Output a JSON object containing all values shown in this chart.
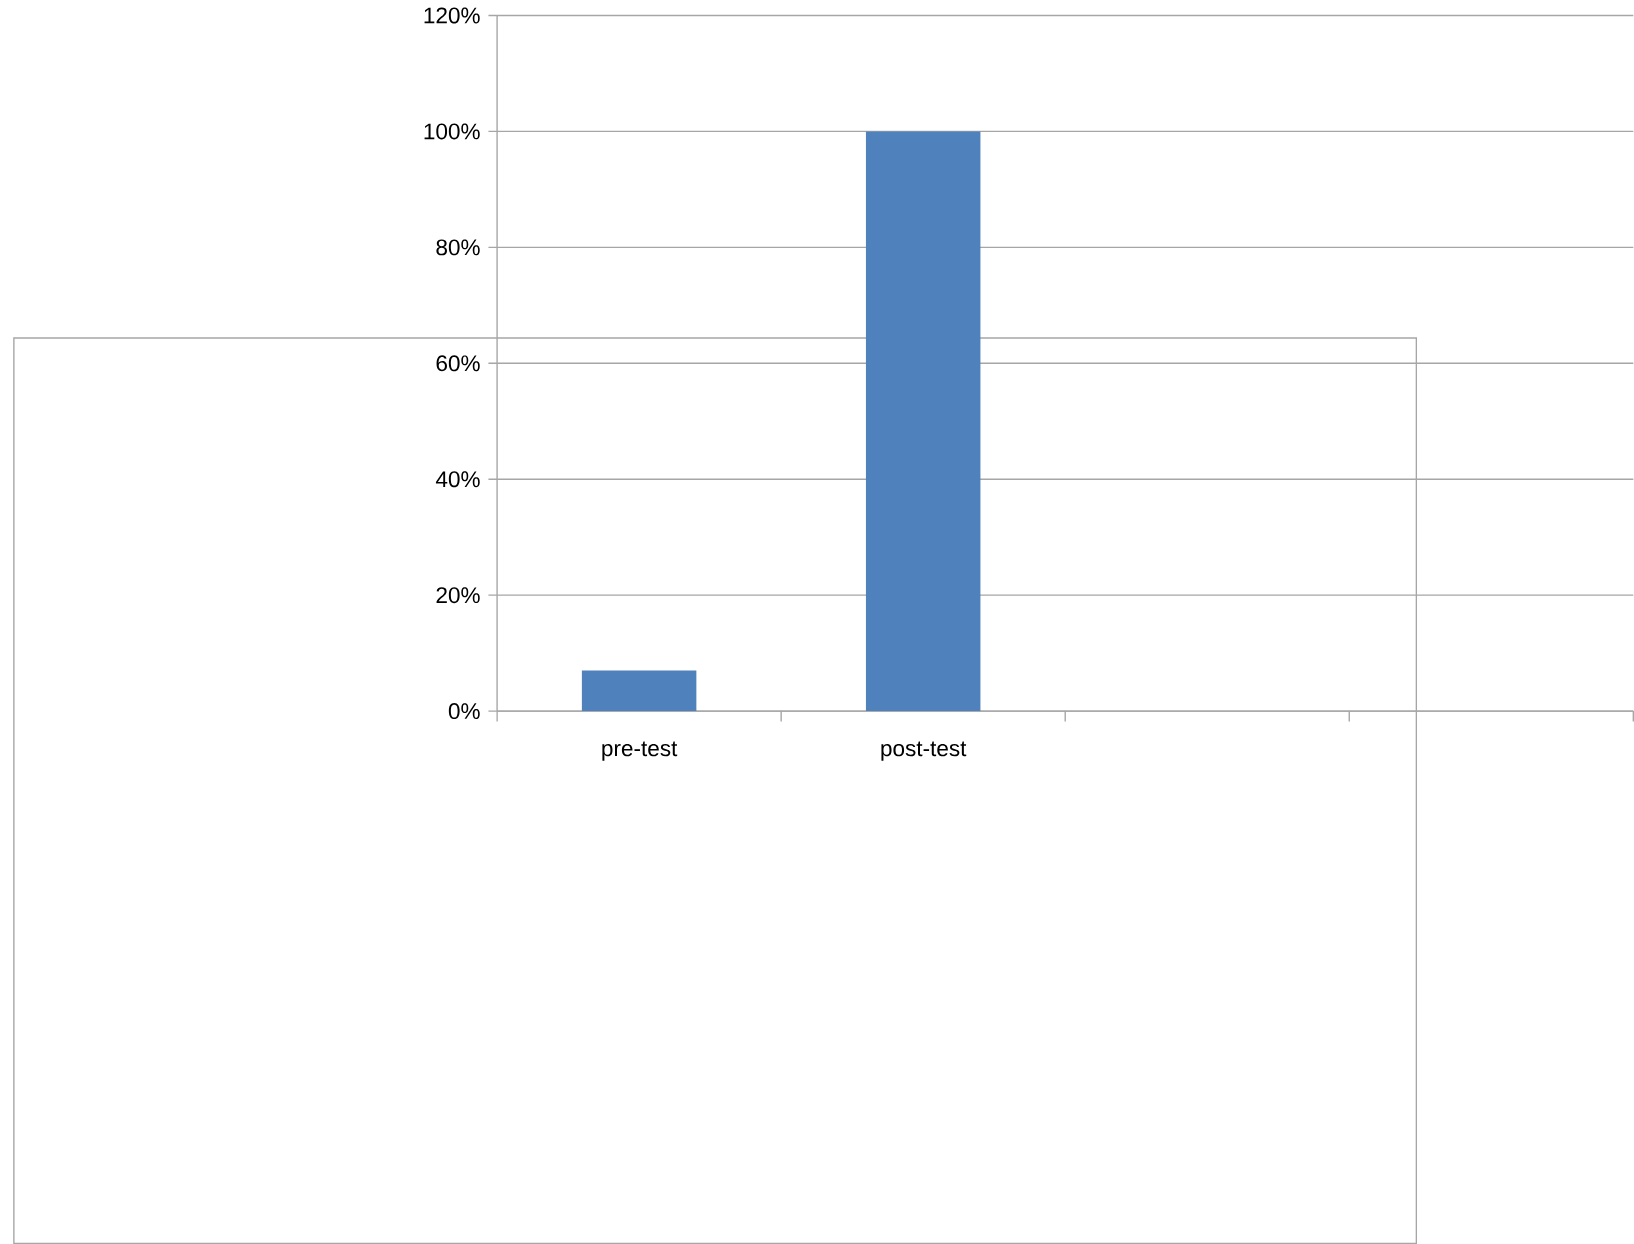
{
  "chart_data": {
    "type": "bar",
    "categories": [
      "pre-test",
      "post-test",
      null,
      null
    ],
    "values": [
      7,
      100,
      null,
      null
    ],
    "color": "#4f81bd",
    "ylim": [
      0,
      120
    ],
    "yticks": [
      {
        "value": 0,
        "label": "0%"
      },
      {
        "value": 20,
        "label": "20%"
      },
      {
        "value": 40,
        "label": "40%"
      },
      {
        "value": 60,
        "label": "60%"
      },
      {
        "value": 80,
        "label": "80%"
      },
      {
        "value": 100,
        "label": "100%"
      },
      {
        "value": 120,
        "label": "120%"
      }
    ],
    "grid": "y"
  }
}
